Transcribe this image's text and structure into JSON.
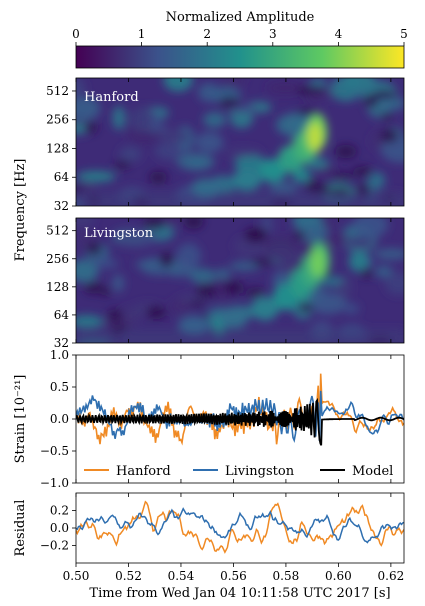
{
  "colorbar": {
    "label": "Normalized Amplitude",
    "ticks": [
      "0",
      "1",
      "2",
      "3",
      "4",
      "5"
    ],
    "range": [
      0,
      5
    ],
    "colors": [
      "#440154",
      "#3b528b",
      "#21918c",
      "#5ec962",
      "#fde725"
    ]
  },
  "chart_data": [
    {
      "type": "heatmap",
      "name": "Hanford",
      "ylabel": "Frequency [Hz]",
      "yscale": "log2",
      "yticks": [
        "32",
        "64",
        "128",
        "256",
        "512"
      ],
      "ylim": [
        32,
        700
      ],
      "xlim": [
        0.5,
        0.625
      ],
      "chirp_track": [
        [
          0.55,
          50
        ],
        [
          0.565,
          60
        ],
        [
          0.575,
          75
        ],
        [
          0.582,
          100
        ],
        [
          0.587,
          130
        ],
        [
          0.59,
          160
        ],
        [
          0.592,
          190
        ]
      ],
      "peak_amplitude": 4.5,
      "peak_time": 0.591,
      "peak_frequency": 170
    },
    {
      "type": "heatmap",
      "name": "Livingston",
      "yscale": "log2",
      "yticks": [
        "32",
        "64",
        "128",
        "256",
        "512"
      ],
      "ylim": [
        32,
        700
      ],
      "xlim": [
        0.5,
        0.625
      ],
      "chirp_track": [
        [
          0.545,
          50
        ],
        [
          0.56,
          60
        ],
        [
          0.572,
          75
        ],
        [
          0.58,
          100
        ],
        [
          0.586,
          140
        ],
        [
          0.59,
          190
        ],
        [
          0.593,
          250
        ]
      ],
      "peak_amplitude": 3.9,
      "peak_time": 0.592,
      "peak_frequency": 230
    },
    {
      "type": "line",
      "ylabel": "Strain [10⁻²¹]",
      "ylim": [
        -1.0,
        1.0
      ],
      "yticks": [
        "1.0",
        "0.5",
        "0.0",
        "−0.5",
        "−1.0"
      ],
      "xlim": [
        0.5,
        0.625
      ],
      "legend_position": "bottom",
      "series": [
        {
          "name": "Hanford",
          "color": "#f08a24"
        },
        {
          "name": "Livingston",
          "color": "#2f6fb0"
        },
        {
          "name": "Model",
          "color": "#000000"
        }
      ]
    },
    {
      "type": "line",
      "ylabel": "Residual",
      "ylim": [
        -0.4,
        0.4
      ],
      "yticks": [
        "0.2",
        "0.0",
        "−0.2"
      ],
      "xlim": [
        0.5,
        0.625
      ],
      "xlabel": "Time from Wed Jan 04 10:11:58 UTC 2017 [s]",
      "xticks": [
        "0.50",
        "0.52",
        "0.54",
        "0.56",
        "0.58",
        "0.60",
        "0.62"
      ],
      "series": [
        {
          "name": "Hanford",
          "color": "#f08a24"
        },
        {
          "name": "Livingston",
          "color": "#2f6fb0"
        }
      ]
    }
  ]
}
